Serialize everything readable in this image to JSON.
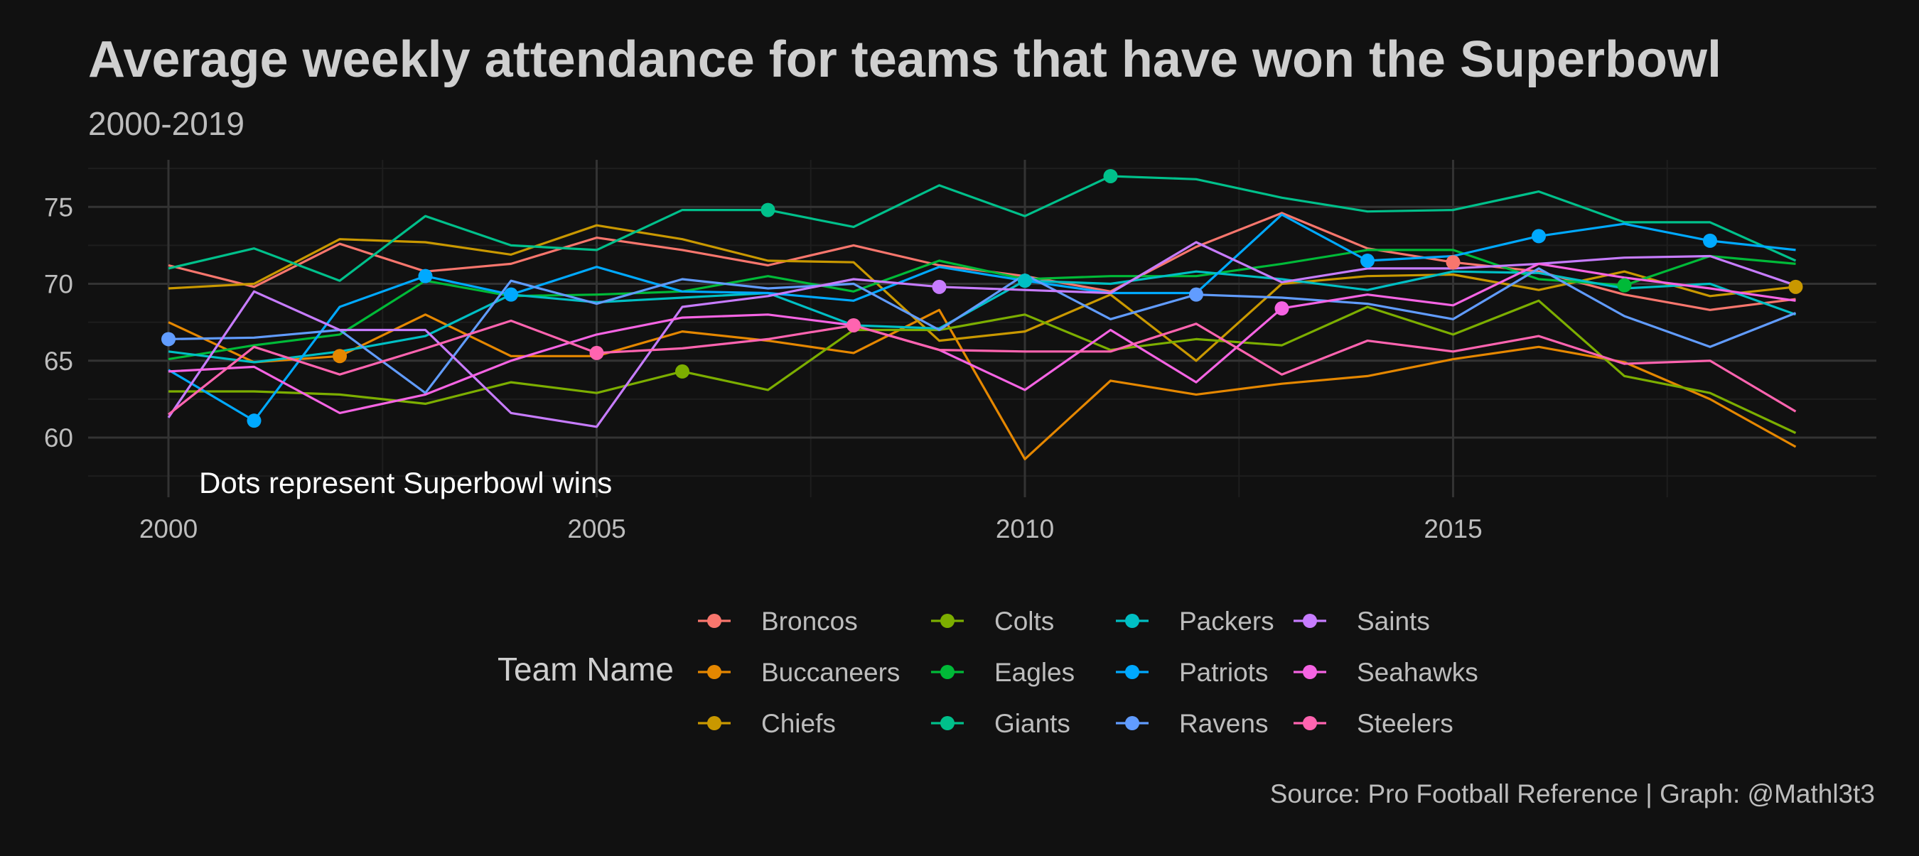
{
  "chart_data": {
    "type": "line",
    "title": "Average weekly attendance for teams that have won the Superbowl",
    "subtitle": "2000-2019",
    "annotation": "Dots represent Superbowl wins",
    "caption": "Source: Pro Football Reference | Graph: @Mathl3t3",
    "xlabel": "",
    "ylabel": "",
    "xlim": [
      2000,
      2019
    ],
    "ylim": [
      56,
      78
    ],
    "x_ticks": [
      2000,
      2005,
      2010,
      2015
    ],
    "y_ticks": [
      60,
      65,
      70,
      75
    ],
    "grid": true,
    "legend_title": "Team Name",
    "legend_position": "bottom",
    "x": [
      2000,
      2001,
      2002,
      2003,
      2004,
      2005,
      2006,
      2007,
      2008,
      2009,
      2010,
      2011,
      2012,
      2013,
      2014,
      2015,
      2016,
      2017,
      2018,
      2019
    ],
    "series": [
      {
        "name": "Broncos",
        "color": "#F8766D",
        "values": [
          71.2,
          69.8,
          72.6,
          70.8,
          71.3,
          73.0,
          72.2,
          71.2,
          72.5,
          71.2,
          70.5,
          69.5,
          72.4,
          74.6,
          72.3,
          71.4,
          70.8,
          69.3,
          68.3,
          69.0
        ],
        "wins": [
          2015
        ]
      },
      {
        "name": "Buccaneers",
        "color": "#E58700",
        "values": [
          67.5,
          64.9,
          65.3,
          68.0,
          65.3,
          65.3,
          66.9,
          66.3,
          65.5,
          68.3,
          58.6,
          63.7,
          62.8,
          63.5,
          64.0,
          65.1,
          65.9,
          64.9,
          62.5,
          59.4
        ],
        "wins": [
          2002
        ]
      },
      {
        "name": "Chiefs",
        "color": "#C99800",
        "values": [
          69.7,
          70.0,
          72.9,
          72.7,
          71.9,
          73.8,
          72.9,
          71.5,
          71.4,
          66.3,
          66.9,
          69.3,
          65.0,
          70.0,
          70.5,
          70.6,
          69.6,
          70.8,
          69.2,
          69.8
        ],
        "wins": [
          2019
        ]
      },
      {
        "name": "Colts",
        "color": "#7CAE00",
        "values": [
          63.0,
          63.0,
          62.8,
          62.2,
          63.6,
          62.9,
          64.3,
          63.1,
          67.0,
          67.0,
          68.0,
          65.7,
          66.4,
          66.0,
          68.5,
          66.7,
          68.9,
          64.0,
          62.9,
          60.3
        ],
        "wins": [
          2006
        ]
      },
      {
        "name": "Eagles",
        "color": "#00BA38",
        "values": [
          65.1,
          66.0,
          66.7,
          70.2,
          69.2,
          69.3,
          69.5,
          70.5,
          69.5,
          71.5,
          70.3,
          70.5,
          70.5,
          71.3,
          72.2,
          72.2,
          70.3,
          69.9,
          71.8,
          71.3
        ],
        "wins": [
          2017
        ]
      },
      {
        "name": "Giants",
        "color": "#00C08B",
        "values": [
          71.0,
          72.3,
          70.2,
          74.4,
          72.5,
          72.2,
          74.8,
          74.8,
          73.7,
          76.4,
          74.4,
          77.0,
          76.8,
          75.6,
          74.7,
          74.8,
          76.0,
          74.0,
          74.0,
          71.5
        ],
        "wins": [
          2007,
          2011
        ]
      },
      {
        "name": "Packers",
        "color": "#00BFC4",
        "values": [
          65.6,
          64.9,
          65.6,
          66.6,
          69.3,
          68.8,
          69.1,
          69.4,
          67.3,
          67.1,
          70.2,
          70.0,
          70.8,
          70.3,
          69.6,
          70.8,
          70.7,
          69.7,
          70.0,
          68.0
        ],
        "wins": [
          2010
        ]
      },
      {
        "name": "Patriots",
        "color": "#00A9FF",
        "values": [
          64.4,
          61.1,
          68.5,
          70.5,
          69.3,
          71.1,
          69.5,
          69.4,
          68.9,
          71.1,
          70.2,
          69.4,
          69.4,
          74.5,
          71.5,
          71.8,
          73.1,
          73.9,
          72.8,
          72.2
        ],
        "wins": [
          2001,
          2003,
          2004,
          2014,
          2016,
          2018
        ]
      },
      {
        "name": "Ravens",
        "color": "#619CFF",
        "values": [
          66.4,
          66.5,
          67.0,
          62.9,
          70.2,
          68.7,
          70.3,
          69.7,
          70.0,
          67.0,
          70.6,
          67.7,
          69.3,
          69.1,
          68.7,
          67.7,
          71.0,
          67.9,
          65.9,
          68.1
        ],
        "wins": [
          2000,
          2012
        ]
      },
      {
        "name": "Saints",
        "color": "#C77CFF",
        "values": [
          61.3,
          69.5,
          67.0,
          67.0,
          61.6,
          60.7,
          68.5,
          69.2,
          70.3,
          69.8,
          69.6,
          69.4,
          72.7,
          70.1,
          71.0,
          71.0,
          71.3,
          71.7,
          71.8,
          69.9
        ],
        "wins": [
          2009
        ]
      },
      {
        "name": "Seahawks",
        "color": "#F564E3",
        "values": [
          64.3,
          64.6,
          61.6,
          62.8,
          65.0,
          66.7,
          67.8,
          68.0,
          67.3,
          65.7,
          63.1,
          67.0,
          63.6,
          68.4,
          69.3,
          68.6,
          71.3,
          70.4,
          69.7,
          68.9
        ],
        "wins": [
          2013
        ]
      },
      {
        "name": "Steelers",
        "color": "#FF64B0",
        "values": [
          61.5,
          65.9,
          64.1,
          65.8,
          67.6,
          65.5,
          65.8,
          66.4,
          67.3,
          65.7,
          65.6,
          65.6,
          67.4,
          64.1,
          66.3,
          65.6,
          66.6,
          64.8,
          65.0,
          61.7
        ],
        "wins": [
          2005,
          2008
        ]
      }
    ]
  }
}
